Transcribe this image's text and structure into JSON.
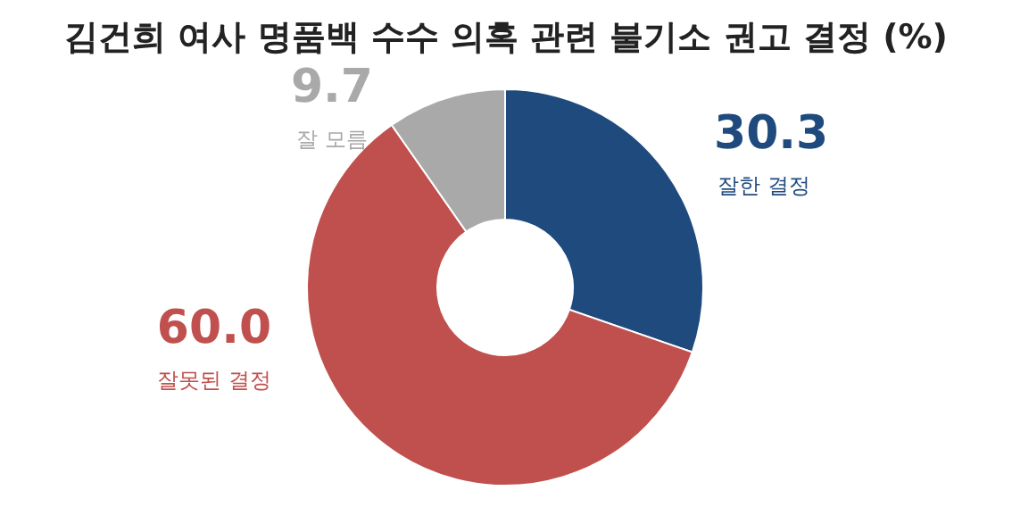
{
  "chart_data": {
    "type": "donut",
    "title": "김건희 여사 명품백 수수 의혹 관련 불기소 권고 결정 (%)",
    "categories": [
      "잘한 결정",
      "잘못된 결정",
      "잘 모름"
    ],
    "values": [
      30.3,
      60.0,
      9.7
    ],
    "value_labels": [
      "30.3",
      "60.0",
      "9.7"
    ],
    "colors": [
      "#1f4a7d",
      "#c0504d",
      "#a9a9a9"
    ]
  }
}
